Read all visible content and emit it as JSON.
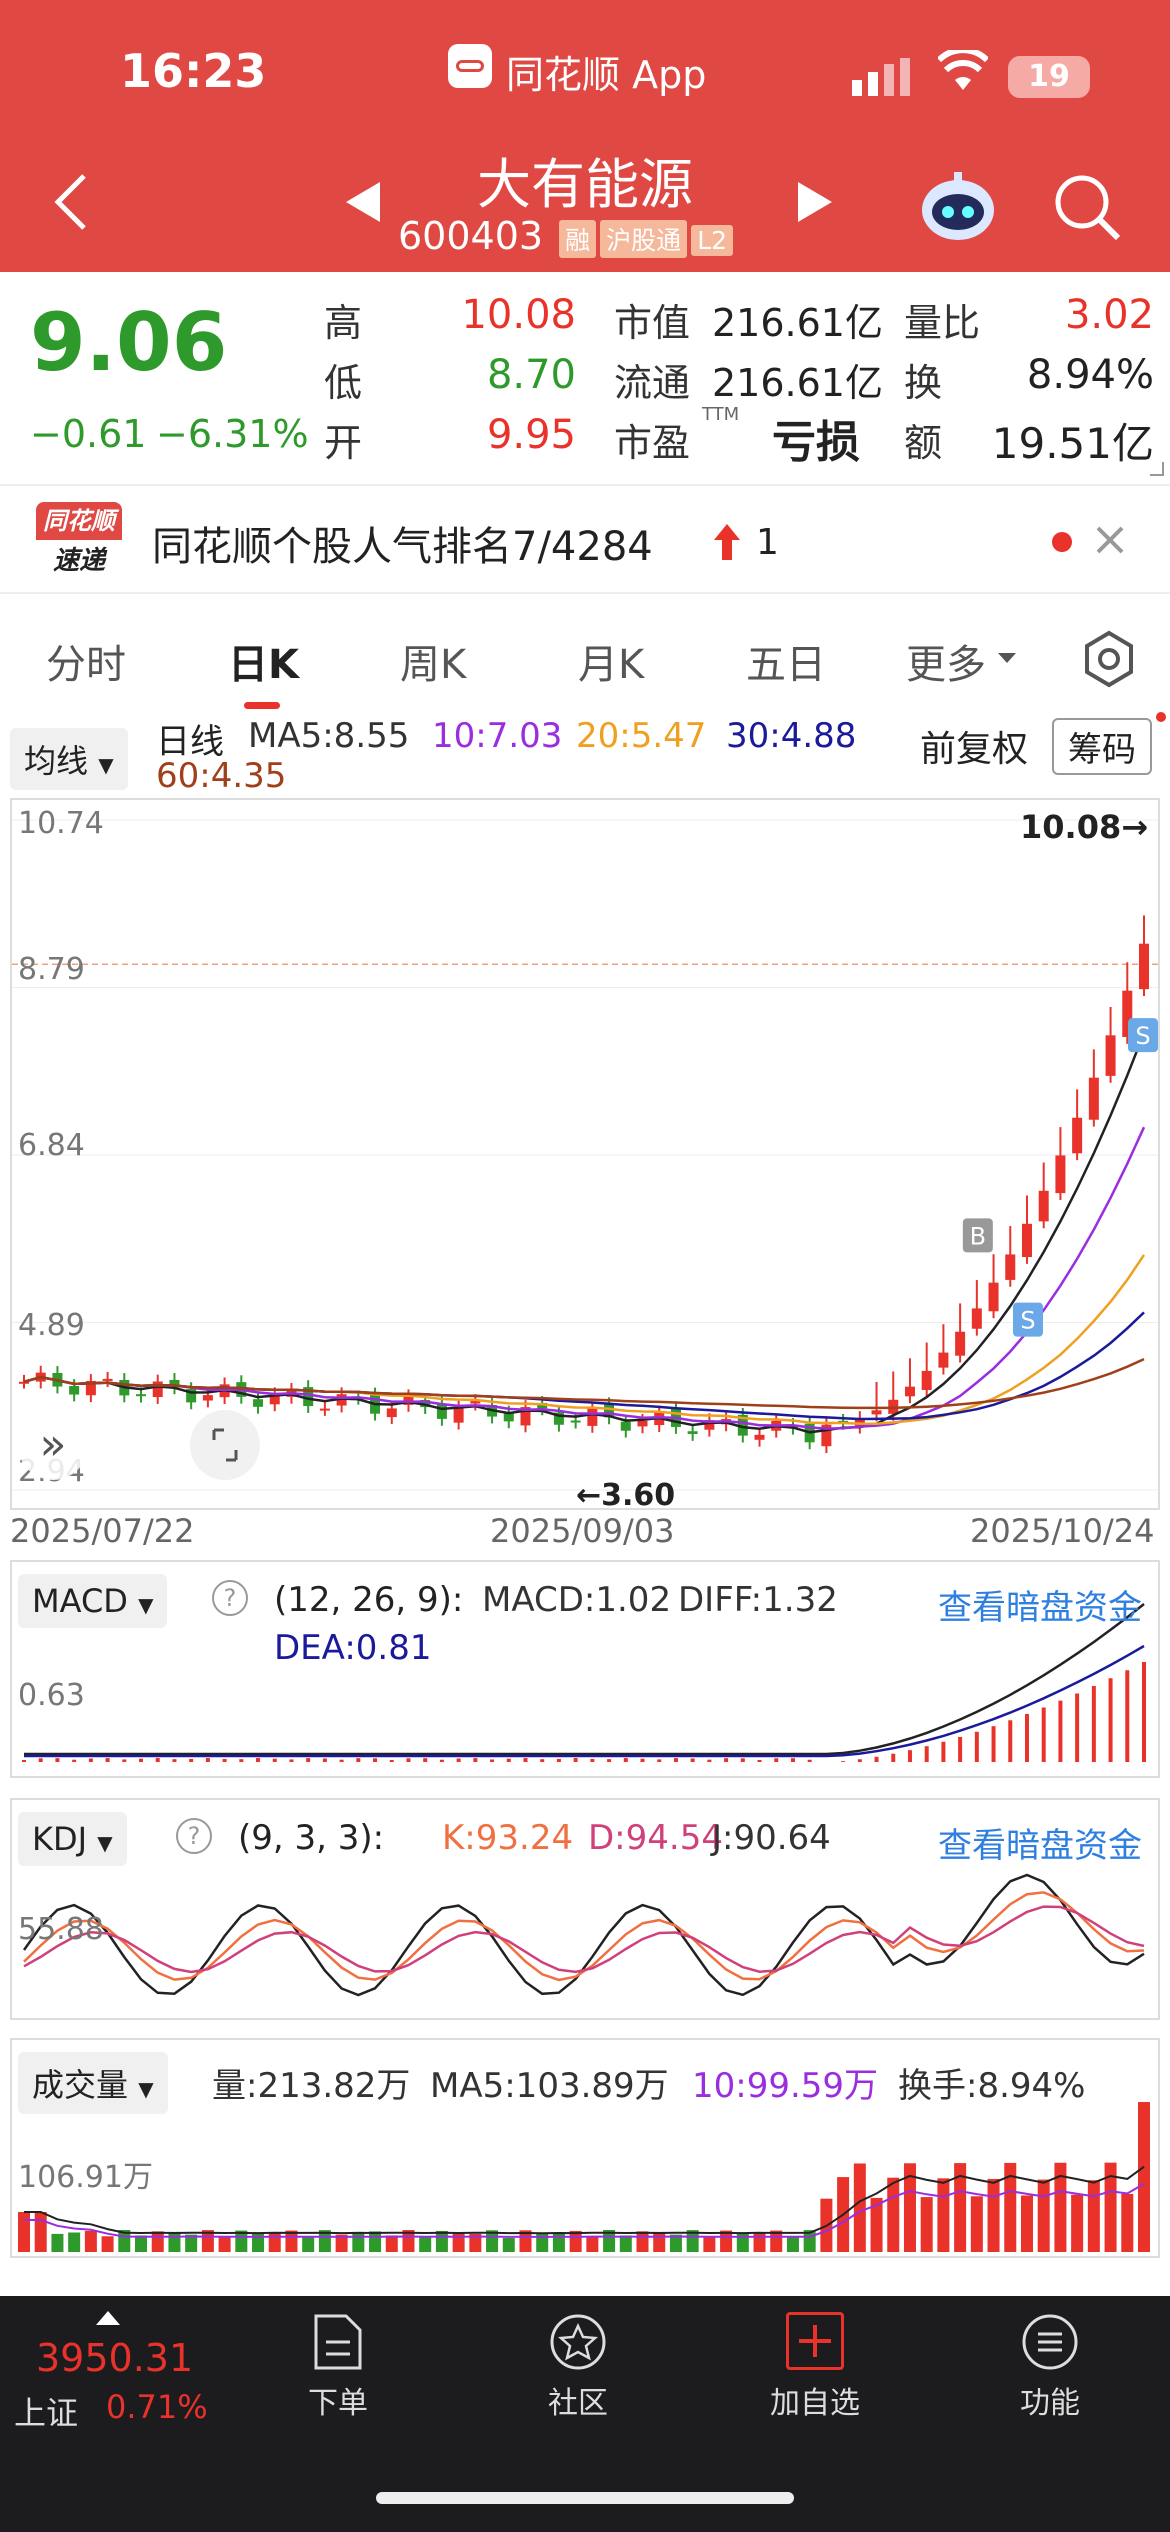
{
  "status_bar": {
    "time": "16:23",
    "app_label": "同花顺 App",
    "battery": "19"
  },
  "stock": {
    "name": "大有能源",
    "code": "600403",
    "tags": [
      "融",
      "沪股通",
      "L2"
    ]
  },
  "quote": {
    "price": "9.06",
    "change": "−0.61",
    "change_pct": "−6.31%",
    "high_label": "高",
    "high": "10.08",
    "low_label": "低",
    "low": "8.70",
    "open_label": "开",
    "open": "9.95",
    "mcap_label": "市值",
    "mcap": "216.61亿",
    "float_label": "流通",
    "float": "216.61亿",
    "pe_label": "市盈",
    "pe_sup": "TTM",
    "pe": "亏损",
    "vr_label": "量比",
    "vr": "3.02",
    "turn_label": "换",
    "turn": "8.94%",
    "amt_label": "额",
    "amt": "19.51亿"
  },
  "news": {
    "logo_top": "同花顺",
    "logo_bottom": "速递",
    "text": "同花顺个股人气排名7/4284",
    "rank_change": "1"
  },
  "tabs": [
    "分时",
    "日K",
    "周K",
    "月K",
    "五日",
    "更多"
  ],
  "active_tab": "日K",
  "ma_bar": {
    "dropdown": "均线",
    "period": "日线",
    "ma5": "MA5:8.55",
    "ma10": "10:7.03",
    "ma20": "20:5.47",
    "ma30": "30:4.88",
    "ma60": "60:4.35",
    "adjust": "前复权",
    "chips": "筹码"
  },
  "kline": {
    "y_ticks": [
      "10.74",
      "8.79",
      "6.84",
      "4.89",
      "2.94"
    ],
    "x_labels": [
      "2025/07/22",
      "2025/09/03",
      "2025/10/24"
    ],
    "high_label": "10.08→",
    "low_label": "←3.60",
    "marker_b": "B",
    "marker_s": "S"
  },
  "macd": {
    "dropdown": "MACD",
    "params": "(12, 26, 9):",
    "macd": "MACD:1.02",
    "diff": "DIFF:1.32",
    "dea": "DEA:0.81",
    "link": "查看暗盘资金",
    "tick": "0.63"
  },
  "kdj": {
    "dropdown": "KDJ",
    "params": "(9, 3, 3):",
    "k": "K:93.24",
    "d": "D:94.54",
    "j": "J:90.64",
    "link": "查看暗盘资金",
    "tick": "55.88"
  },
  "volume": {
    "dropdown": "成交量",
    "vol": "量:213.82万",
    "ma5": "MA5:103.89万",
    "ma10": "10:99.59万",
    "turnover": "换手:8.94%",
    "tick": "106.91万"
  },
  "bottom_nav": {
    "index_value": "3950.31",
    "index_name": "上证",
    "index_pct": "0.71%",
    "items": [
      "下单",
      "社区",
      "加自选",
      "功能"
    ]
  },
  "colors": {
    "header": "#e04844",
    "up": "#e8322a",
    "down": "#2f9a2c",
    "ma5": "#222222",
    "ma10": "#9b2de0",
    "ma20": "#f0a020",
    "ma30": "#1a1a9a",
    "ma60": "#a0401a"
  }
}
